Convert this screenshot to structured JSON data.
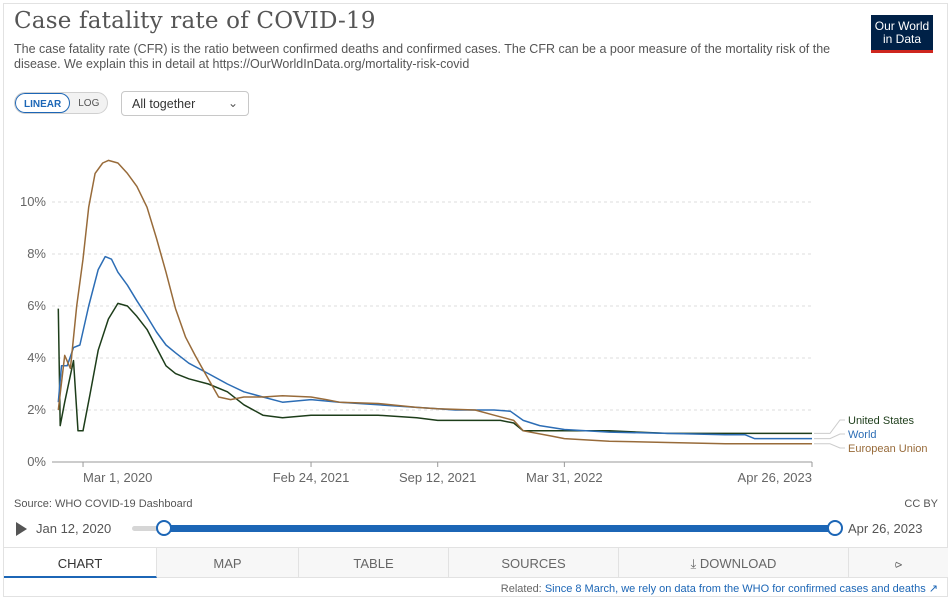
{
  "header": {
    "title": "Case fatality rate of COVID-19",
    "subtitle": "The case fatality rate (CFR) is the ratio between confirmed deaths and confirmed cases. The CFR can be a poor measure of the mortality risk of the disease. We explain this in detail at https://OurWorldInData.org/mortality-risk-covid",
    "logo_line1": "Our World",
    "logo_line2": "in Data"
  },
  "controls": {
    "linear": "LINEAR",
    "log": "LOG",
    "dropdown": "All together"
  },
  "chart_data": {
    "type": "line",
    "ylim": [
      0,
      12
    ],
    "yticks": [
      0,
      2,
      4,
      6,
      8,
      10
    ],
    "ytick_labels": [
      "0%",
      "2%",
      "4%",
      "6%",
      "8%",
      "10%"
    ],
    "xlim": [
      "2020-01-12",
      "2023-04-26"
    ],
    "xticks": [
      "2020-03-01",
      "2021-02-24",
      "2021-09-12",
      "2022-03-31",
      "2023-04-26"
    ],
    "xtick_labels": [
      "Mar 1, 2020",
      "Feb 24, 2021",
      "Sep 12, 2021",
      "Mar 31, 2022",
      "Apr 26, 2023"
    ],
    "grid": true,
    "legend": "right",
    "series": [
      {
        "name": "United States",
        "color": "#1d3d1a",
        "points": [
          [
            "2020-01-22",
            5.9
          ],
          [
            "2020-01-25",
            1.4
          ],
          [
            "2020-02-01",
            2.3
          ],
          [
            "2020-02-15",
            3.9
          ],
          [
            "2020-02-22",
            1.2
          ],
          [
            "2020-03-01",
            1.2
          ],
          [
            "2020-03-12",
            2.6
          ],
          [
            "2020-03-25",
            4.3
          ],
          [
            "2020-04-10",
            5.5
          ],
          [
            "2020-04-25",
            6.1
          ],
          [
            "2020-05-10",
            6.0
          ],
          [
            "2020-05-25",
            5.6
          ],
          [
            "2020-06-10",
            5.1
          ],
          [
            "2020-06-25",
            4.4
          ],
          [
            "2020-07-10",
            3.7
          ],
          [
            "2020-07-25",
            3.4
          ],
          [
            "2020-08-15",
            3.2
          ],
          [
            "2020-09-15",
            3.0
          ],
          [
            "2020-10-15",
            2.7
          ],
          [
            "2020-11-10",
            2.2
          ],
          [
            "2020-12-10",
            1.8
          ],
          [
            "2021-01-10",
            1.7
          ],
          [
            "2021-02-24",
            1.8
          ],
          [
            "2021-04-10",
            1.8
          ],
          [
            "2021-06-10",
            1.8
          ],
          [
            "2021-08-10",
            1.7
          ],
          [
            "2021-09-12",
            1.6
          ],
          [
            "2021-11-10",
            1.6
          ],
          [
            "2021-12-20",
            1.6
          ],
          [
            "2022-01-10",
            1.5
          ],
          [
            "2022-01-25",
            1.2
          ],
          [
            "2022-03-31",
            1.2
          ],
          [
            "2022-06-10",
            1.2
          ],
          [
            "2022-09-10",
            1.1
          ],
          [
            "2022-12-10",
            1.1
          ],
          [
            "2023-04-26",
            1.1
          ]
        ]
      },
      {
        "name": "World",
        "color": "#2c6db5",
        "points": [
          [
            "2020-01-22",
            2.3
          ],
          [
            "2020-01-27",
            3.7
          ],
          [
            "2020-02-05",
            3.7
          ],
          [
            "2020-02-15",
            4.4
          ],
          [
            "2020-02-25",
            4.5
          ],
          [
            "2020-03-10",
            6.0
          ],
          [
            "2020-03-25",
            7.4
          ],
          [
            "2020-04-05",
            7.9
          ],
          [
            "2020-04-15",
            7.8
          ],
          [
            "2020-04-25",
            7.3
          ],
          [
            "2020-05-10",
            6.8
          ],
          [
            "2020-05-25",
            6.2
          ],
          [
            "2020-06-10",
            5.6
          ],
          [
            "2020-06-25",
            5.0
          ],
          [
            "2020-07-10",
            4.5
          ],
          [
            "2020-07-25",
            4.2
          ],
          [
            "2020-08-15",
            3.8
          ],
          [
            "2020-09-15",
            3.4
          ],
          [
            "2020-10-15",
            3.0
          ],
          [
            "2020-11-10",
            2.7
          ],
          [
            "2020-12-10",
            2.5
          ],
          [
            "2021-01-10",
            2.3
          ],
          [
            "2021-02-24",
            2.4
          ],
          [
            "2021-04-10",
            2.3
          ],
          [
            "2021-06-10",
            2.2
          ],
          [
            "2021-08-10",
            2.1
          ],
          [
            "2021-09-12",
            2.05
          ],
          [
            "2021-10-10",
            2.0
          ],
          [
            "2021-12-10",
            2.0
          ],
          [
            "2022-01-05",
            1.95
          ],
          [
            "2022-01-25",
            1.6
          ],
          [
            "2022-02-20",
            1.4
          ],
          [
            "2022-03-31",
            1.25
          ],
          [
            "2022-06-10",
            1.15
          ],
          [
            "2022-09-10",
            1.1
          ],
          [
            "2022-12-10",
            1.05
          ],
          [
            "2023-01-10",
            1.05
          ],
          [
            "2023-01-25",
            0.9
          ],
          [
            "2023-04-26",
            0.9
          ]
        ]
      },
      {
        "name": "European Union",
        "color": "#986b3a",
        "points": [
          [
            "2020-01-22",
            2.0
          ],
          [
            "2020-02-01",
            4.1
          ],
          [
            "2020-02-10",
            3.6
          ],
          [
            "2020-02-20",
            6.0
          ],
          [
            "2020-03-01",
            7.8
          ],
          [
            "2020-03-10",
            9.8
          ],
          [
            "2020-03-20",
            11.1
          ],
          [
            "2020-04-01",
            11.5
          ],
          [
            "2020-04-10",
            11.6
          ],
          [
            "2020-04-25",
            11.5
          ],
          [
            "2020-05-10",
            11.1
          ],
          [
            "2020-05-25",
            10.6
          ],
          [
            "2020-06-10",
            9.8
          ],
          [
            "2020-06-25",
            8.6
          ],
          [
            "2020-07-10",
            7.3
          ],
          [
            "2020-07-25",
            5.9
          ],
          [
            "2020-08-10",
            4.8
          ],
          [
            "2020-08-25",
            4.1
          ],
          [
            "2020-09-10",
            3.4
          ],
          [
            "2020-10-01",
            2.5
          ],
          [
            "2020-10-20",
            2.4
          ],
          [
            "2020-11-10",
            2.5
          ],
          [
            "2020-12-10",
            2.5
          ],
          [
            "2021-01-10",
            2.55
          ],
          [
            "2021-02-24",
            2.5
          ],
          [
            "2021-03-20",
            2.4
          ],
          [
            "2021-04-10",
            2.3
          ],
          [
            "2021-06-10",
            2.25
          ],
          [
            "2021-08-10",
            2.1
          ],
          [
            "2021-09-12",
            2.05
          ],
          [
            "2021-11-10",
            2.0
          ],
          [
            "2021-12-10",
            1.8
          ],
          [
            "2022-01-10",
            1.6
          ],
          [
            "2022-01-25",
            1.2
          ],
          [
            "2022-03-10",
            1.0
          ],
          [
            "2022-03-31",
            0.9
          ],
          [
            "2022-06-10",
            0.8
          ],
          [
            "2022-09-10",
            0.75
          ],
          [
            "2022-12-10",
            0.7
          ],
          [
            "2023-04-26",
            0.7
          ]
        ]
      }
    ]
  },
  "footer": {
    "source": "Source: WHO COVID-19 Dashboard",
    "license": "CC BY",
    "timeline_start": "Jan 12, 2020",
    "timeline_end": "Apr 26, 2023"
  },
  "tabs": {
    "chart": "CHART",
    "map": "MAP",
    "table": "TABLE",
    "sources": "SOURCES",
    "download": "DOWNLOAD"
  },
  "related": {
    "label": "Related:",
    "link": "Since 8 March, we rely on data from the WHO for confirmed cases and deaths"
  }
}
